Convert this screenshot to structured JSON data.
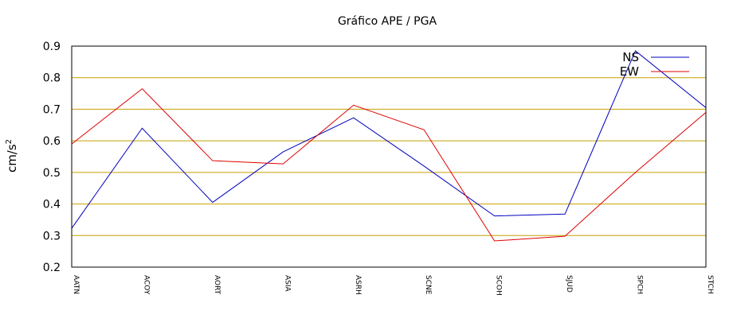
{
  "chart_data": {
    "type": "line",
    "title": "Gráfico  APE / PGA",
    "ylabel_base": "cm/s",
    "ylabel_exp": "2",
    "ylim": [
      0.2,
      0.9
    ],
    "yticks": [
      "0.2",
      "0.3",
      "0.4",
      "0.5",
      "0.6",
      "0.7",
      "0.8",
      "0.9"
    ],
    "grid": true,
    "grid_color": "#c8a000",
    "legend_position": "top-right",
    "categories": [
      "AATN",
      "ACOY",
      "AORT",
      "ASIA",
      "ASRH",
      "SCNE",
      "SCOH",
      "SJUD",
      "SPCH",
      "STCH"
    ],
    "series": [
      {
        "name": "NS",
        "color": "#0000c0",
        "values": [
          0.323,
          0.64,
          0.405,
          0.565,
          0.673,
          0.52,
          0.362,
          0.368,
          0.885,
          0.705
        ]
      },
      {
        "name": "EW",
        "color": "#e00000",
        "values": [
          0.59,
          0.765,
          0.537,
          0.527,
          0.713,
          0.635,
          0.283,
          0.298,
          0.5,
          0.69
        ]
      }
    ]
  }
}
